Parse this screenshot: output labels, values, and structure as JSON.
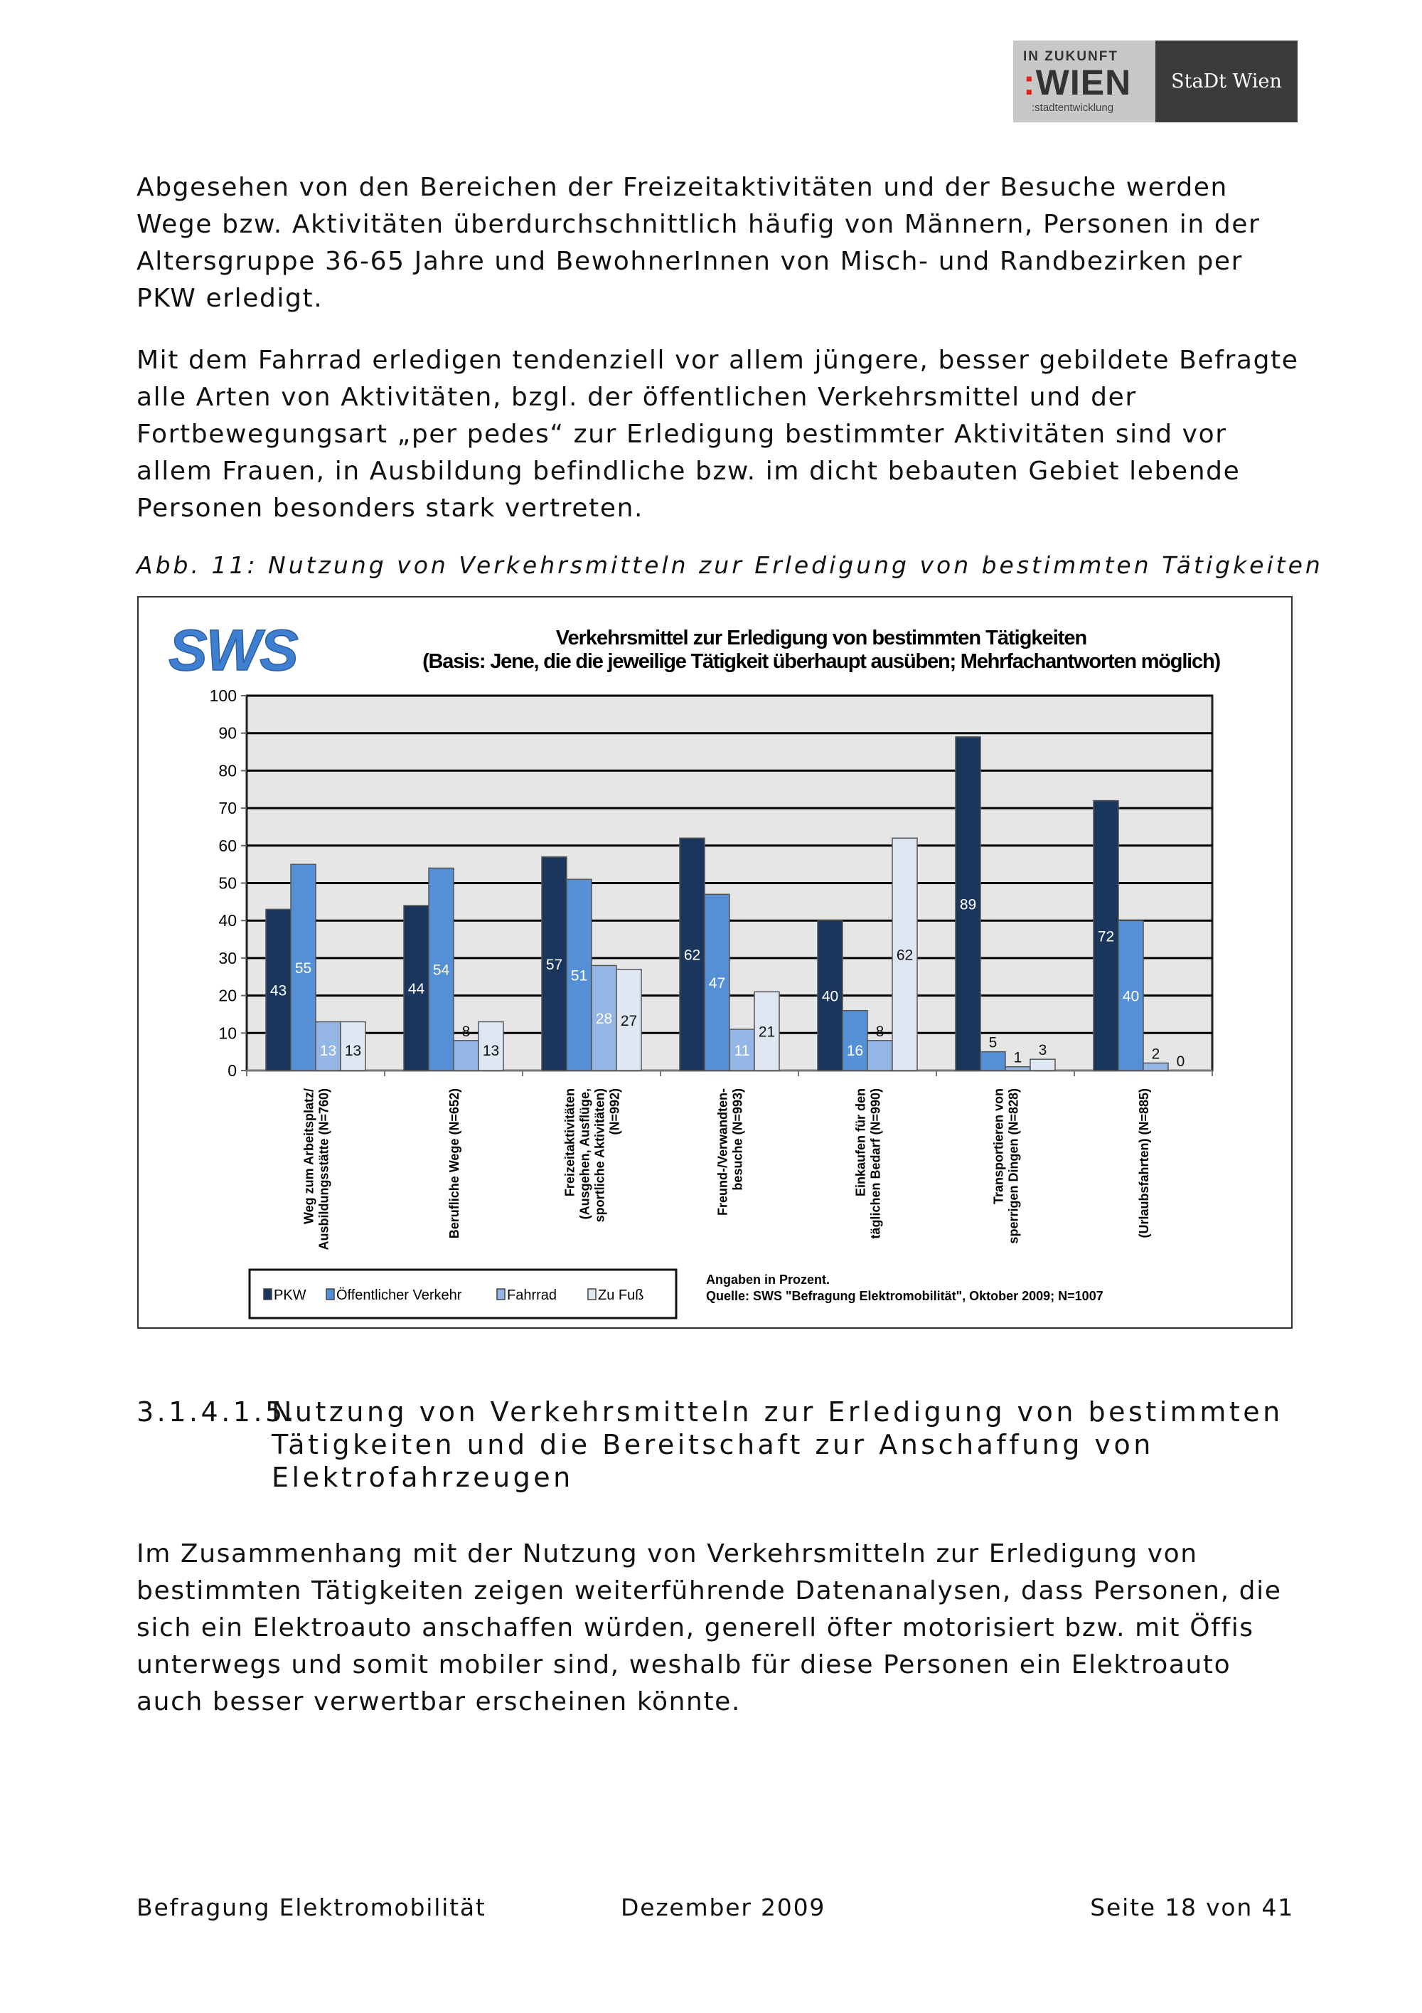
{
  "logo": {
    "top": "IN ZUKUNFT",
    "word": "WIEN",
    "sub": ":stadtentwicklung",
    "right": "StaDt Wien"
  },
  "paragraphs": [
    "Abgesehen von den Bereichen der Freizeitaktivitäten und der Besuche werden Wege bzw. Aktivitäten überdurchschnittlich häufig von Männern, Personen in der Altersgruppe 36-65 Jahre und BewohnerInnen von Misch- und Randbezirken per PKW erledigt.",
    "Mit dem Fahrrad erledigen tendenziell vor allem jüngere, besser gebildete Befragte alle Arten von Aktivitäten, bzgl. der öffentlichen Verkehrsmittel und der Fortbewegungsart „per pedes“ zur Erledigung bestimmter Aktivitäten sind vor allem Frauen, in Ausbildung befindliche bzw. im dicht bebauten Gebiet lebende Personen besonders stark vertreten."
  ],
  "caption": "Abb. 11: Nutzung von Verkehrsmitteln zur Erledigung von bestimmten Tätigkeiten",
  "chart_data": {
    "type": "bar",
    "logo": "SWS",
    "title": "Verkehrsmittel zur Erledigung von bestimmten Tätigkeiten",
    "subtitle": "(Basis: Jene, die die jeweilige Tätigkeit überhaupt ausüben; Mehrfachantworten möglich)",
    "ylim": [
      0,
      100
    ],
    "yticks": [
      0,
      10,
      20,
      30,
      40,
      50,
      60,
      70,
      80,
      90,
      100
    ],
    "categories": [
      [
        "Weg zum Arbeitsplatz/",
        "Ausbildungsstätte (N=760)"
      ],
      [
        "Berufliche Wege (N=652)"
      ],
      [
        "Freizeitaktivitäten",
        "(Ausgehen, Ausflüge,",
        "sportliche Aktivitäten)",
        "(N=992)"
      ],
      [
        "Freund-/Verwandten-",
        "besuche (N=993)"
      ],
      [
        "Einkaufen für den",
        "täglichen Bedarf (N=990)"
      ],
      [
        "Transportieren von",
        "sperrigen Dingen (N=828)"
      ],
      [
        "(Urlaubsfahrten) (N=885)"
      ]
    ],
    "series": [
      {
        "name": "PKW",
        "color": "#1b365d",
        "values": [
          43,
          44,
          57,
          62,
          40,
          89,
          72
        ]
      },
      {
        "name": "Öffentlicher Verkehr",
        "color": "#5590d6",
        "values": [
          55,
          54,
          51,
          47,
          16,
          5,
          40
        ]
      },
      {
        "name": "Fahrrad",
        "color": "#93b6e4",
        "values": [
          13,
          8,
          28,
          11,
          8,
          1,
          2
        ]
      },
      {
        "name": "Zu Fuß",
        "color": "#dfe7f3",
        "values": [
          13,
          13,
          27,
          21,
          62,
          3,
          0
        ]
      }
    ],
    "legend": "bottom-left",
    "notes": [
      "Angaben in Prozent.",
      "Quelle: SWS \"Befragung Elektromobilität\", Oktober 2009; N=1007"
    ]
  },
  "section": {
    "number": "3.1.4.1.5.",
    "title_line1": "Nutzung von Verkehrsmitteln zur Erledigung von bestimmten",
    "title_line2": "Tätigkeiten und die Bereitschaft zur Anschaffung von",
    "title_line3": "Elektrofahrzeugen"
  },
  "closing_paragraph": "Im Zusammenhang mit der Nutzung von Verkehrsmitteln zur Erledigung von bestimmten Tätigkeiten zeigen weiterführende Datenanalysen, dass Personen, die sich ein Elektroauto anschaffen würden, generell öfter motorisiert bzw. mit Öffis unterwegs und somit mobiler sind, weshalb für diese Personen ein Elektroauto auch besser verwertbar erscheinen könnte.",
  "footer": {
    "left": "Befragung Elektromobilität",
    "center": "Dezember 2009",
    "right": "Seite 18 von 41"
  }
}
